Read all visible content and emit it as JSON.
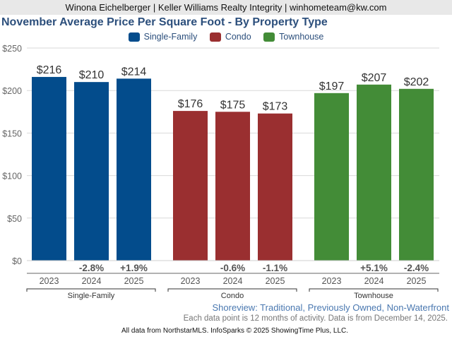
{
  "header": {
    "agent_line": "Winona Eichelberger | Keller Williams Realty Integrity | winhometeam@kw.com"
  },
  "chart_data": {
    "type": "bar",
    "title": "November Average Price Per Square Foot - By Property Type",
    "xlabel": "",
    "ylabel": "",
    "ylim": [
      0,
      250
    ],
    "yticks": [
      0,
      50,
      100,
      150,
      200,
      250
    ],
    "ytick_labels": [
      "$0",
      "$50",
      "$100",
      "$150",
      "$200",
      "$250"
    ],
    "grid": true,
    "legend_position": "top-center",
    "legend": [
      {
        "name": "Single-Family",
        "color": "#034c8c"
      },
      {
        "name": "Condo",
        "color": "#9a2f30"
      },
      {
        "name": "Townhouse",
        "color": "#438c37"
      }
    ],
    "groups": [
      {
        "name": "Single-Family",
        "color": "#034c8c",
        "categories": [
          "2023",
          "2024",
          "2025"
        ],
        "values": [
          216,
          210,
          214
        ],
        "value_labels": [
          "$216",
          "$210",
          "$214"
        ],
        "changes": [
          "",
          "-2.8%",
          "+1.9%"
        ]
      },
      {
        "name": "Condo",
        "color": "#9a2f30",
        "categories": [
          "2023",
          "2024",
          "2025"
        ],
        "values": [
          176,
          175,
          173
        ],
        "value_labels": [
          "$176",
          "$175",
          "$173"
        ],
        "changes": [
          "",
          "-0.6%",
          "-1.1%"
        ]
      },
      {
        "name": "Townhouse",
        "color": "#438c37",
        "categories": [
          "2023",
          "2024",
          "2025"
        ],
        "values": [
          197,
          207,
          202
        ],
        "value_labels": [
          "$197",
          "$207",
          "$202"
        ],
        "changes": [
          "",
          "+5.1%",
          "-2.4%"
        ]
      }
    ]
  },
  "footer": {
    "subtitle": "Shoreview: Traditional, Previously Owned, Non-Waterfront",
    "note": "Each data point is 12 months of activity. Data is from December 14, 2025.",
    "credit": "All data from NorthstarMLS. InfoSparks © 2025 ShowingTime Plus, LLC."
  }
}
